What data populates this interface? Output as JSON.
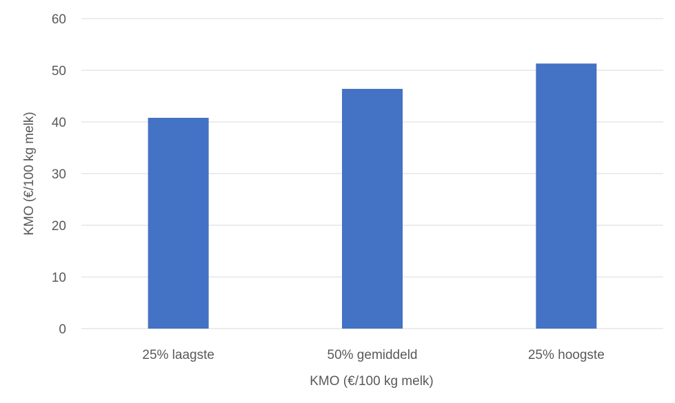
{
  "chart_data": {
    "type": "bar",
    "categories": [
      "25% laagste",
      "50% gemiddeld",
      "25% hoogste"
    ],
    "values": [
      40.8,
      46.4,
      51.3
    ],
    "xlabel": "KMO (€/100 kg melk)",
    "ylabel": "KMO (€/100 kg melk)",
    "ylim": [
      0,
      60
    ],
    "yticks": [
      0,
      10,
      20,
      30,
      40,
      50,
      60
    ],
    "grid": true,
    "legend": "none",
    "colors": {
      "bar": "#4472C4",
      "grid": "#D9D9D9",
      "text": "#595959"
    }
  }
}
